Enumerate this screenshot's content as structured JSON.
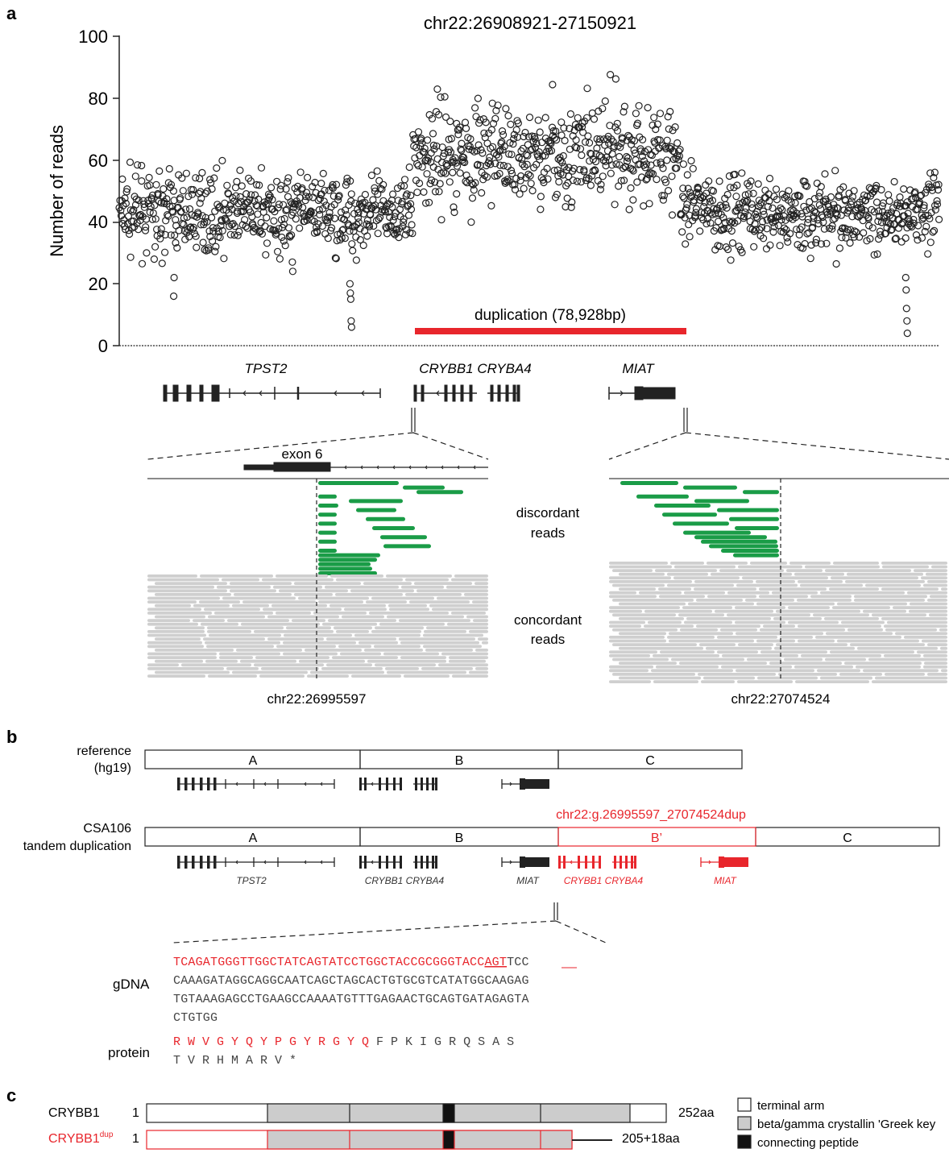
{
  "panels": {
    "a": "a",
    "b": "b",
    "c": "c"
  },
  "panel_a": {
    "title": "chr22:26908921-27150921",
    "ylabel": "Number of reads",
    "yticks": [
      "0",
      "20",
      "40",
      "60",
      "80",
      "100"
    ],
    "duplication_label": "duplication (78,928bp)",
    "genes": [
      "TPST2",
      "CRYBB1 CRYBA4",
      "MIAT"
    ],
    "exon_label": "exon 6",
    "discordant_label": [
      "discordant",
      "reads"
    ],
    "concordant_label": [
      "concordant",
      "reads"
    ],
    "left_breakpoint": "chr22:26995597",
    "right_breakpoint": "chr22:27074524"
  },
  "chart_data": {
    "type": "scatter",
    "title": "chr22:26908921-27150921",
    "xlabel": "",
    "ylabel": "Number of reads",
    "ylim": [
      0,
      100
    ],
    "xlim": [
      26908921,
      27150921
    ],
    "series_description_bins": {
      "x_start": [
        26908921,
        26970000,
        26995597,
        27074524,
        27150921
      ],
      "baseline_mean_reads": [
        43,
        41,
        62,
        42,
        42
      ]
    },
    "duplication": {
      "start": 26995597,
      "end": 27074524,
      "label": "duplication (78,928bp)"
    },
    "notable_low_points": [
      {
        "x": 26980000,
        "y": 5
      },
      {
        "x": 27140000,
        "y": 4
      }
    ]
  },
  "panel_b": {
    "ref_label": [
      "reference",
      "(hg19)"
    ],
    "ref_segments": [
      "A",
      "B",
      "C"
    ],
    "csa_label": [
      "CSA106",
      "tandem duplication"
    ],
    "csa_segments": [
      "A",
      "B",
      "B’",
      "C"
    ],
    "dup_notation": "chr22:g.26995597_27074524dup",
    "genes_black": [
      "TPST2",
      "CRYBB1 CRYBA4",
      "MIAT"
    ],
    "genes_red": [
      "CRYBB1 CRYBA4",
      "MIAT"
    ],
    "gdna_label": "gDNA",
    "gdna_red": "TCAGATGGGTTGGCTATCAGTATCCTGGCTACCGCGGGTACC",
    "gdna_red_underlined": "AGT",
    "gdna_line1_rest": "TCC",
    "gdna_lines": [
      "CAAAGATAGGCAGGCAATCAGCTAGCACTGTGCGTCATATGGCAAGAG",
      "TGTAAAGAGCCTGAAGCCAAAATGTTTGAGAACTGCAGTGATAGAGTA",
      "CTGTGG"
    ],
    "protein_label": "protein",
    "protein_red": "R W V G Y Q Y P G Y R G Y Q",
    "protein_line1_rest": " F P K I G R Q S A S",
    "protein_line2": "T V R H M A R V *"
  },
  "panel_c": {
    "row1_name": "CRYBB1",
    "row1_start": "1",
    "row1_end": "252aa",
    "row2_name": "CRYBB1",
    "row2_sup": "dup",
    "row2_start": "1",
    "row2_end": "205+18aa",
    "legend": [
      "terminal arm",
      "beta/gamma crystallin 'Greek key",
      "connecting peptide"
    ]
  },
  "colors": {
    "red": "#e8262c",
    "green": "#1a9c47",
    "grey_read": "#cfcfcf",
    "domain_grey": "#cccccc"
  }
}
